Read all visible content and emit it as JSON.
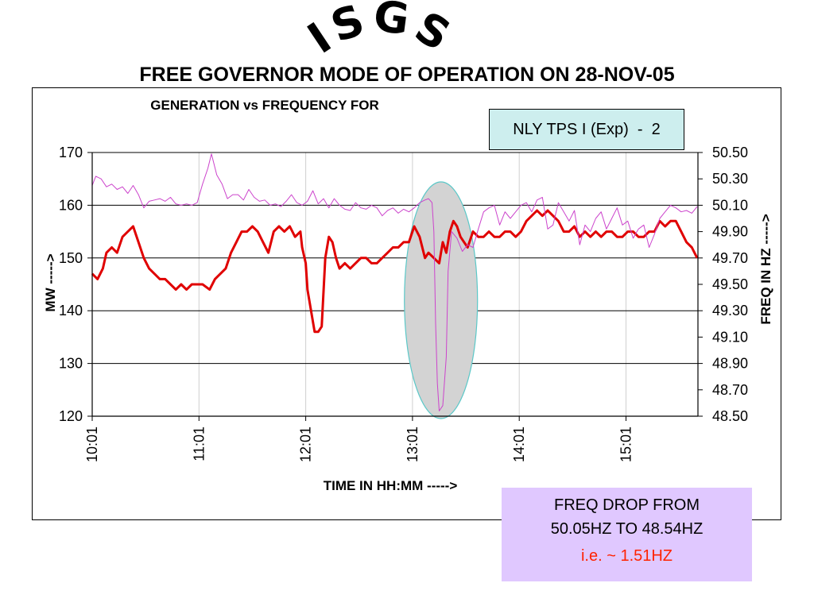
{
  "slide": {
    "logo_text": "ISGS",
    "title": "FREE GOVERNOR MODE OF OPERATION ON 28-NOV-05"
  },
  "unit_box": {
    "label": "NLY TPS I (Exp)  -  2"
  },
  "note": {
    "line1": "FREQ DROP FROM",
    "line2": "50.05HZ TO 48.54HZ",
    "line3": "i.e. ~ 1.51HZ",
    "line3_color": "#ff2200",
    "background": "#e0c8ff"
  },
  "chart_data": {
    "type": "line",
    "title": "GENERATION vs FREQUENCY FOR",
    "xlabel": "TIME IN HH:MM ----->",
    "ylabel_left": "MW ----->",
    "ylabel_right": "FREQ IN HZ ----->",
    "x_ticks": [
      "10:01",
      "11:01",
      "12:01",
      "13:01",
      "14:01",
      "15:01"
    ],
    "x_range": [
      "10:01",
      "15:41"
    ],
    "y_left": {
      "range": [
        120,
        170
      ],
      "ticks": [
        "120",
        "130",
        "140",
        "150",
        "160",
        "170"
      ]
    },
    "y_right": {
      "range": [
        48.5,
        50.5
      ],
      "ticks": [
        "48.50",
        "48.70",
        "48.90",
        "49.10",
        "49.30",
        "49.50",
        "49.70",
        "49.90",
        "50.10",
        "50.30",
        "50.50"
      ]
    },
    "grid": "horizontal",
    "highlight": {
      "type": "ellipse",
      "around": "frequency drop near 13:20",
      "fill": "#d3d3d3",
      "stroke": "#5bc8c8"
    },
    "series": [
      {
        "axis": "left",
        "color": "#e00000",
        "points": [
          [
            "10:01",
            147
          ],
          [
            "10:04",
            146
          ],
          [
            "10:07",
            148
          ],
          [
            "10:09",
            151
          ],
          [
            "10:12",
            152
          ],
          [
            "10:15",
            151
          ],
          [
            "10:18",
            154
          ],
          [
            "10:21",
            155
          ],
          [
            "10:24",
            156
          ],
          [
            "10:27",
            153
          ],
          [
            "10:30",
            150
          ],
          [
            "10:33",
            148
          ],
          [
            "10:36",
            147
          ],
          [
            "10:39",
            146
          ],
          [
            "10:42",
            146
          ],
          [
            "10:45",
            145
          ],
          [
            "10:48",
            144
          ],
          [
            "10:51",
            145
          ],
          [
            "10:54",
            144
          ],
          [
            "10:57",
            145
          ],
          [
            "11:00",
            145
          ],
          [
            "11:03",
            145
          ],
          [
            "11:07",
            144
          ],
          [
            "11:10",
            146
          ],
          [
            "11:13",
            147
          ],
          [
            "11:16",
            148
          ],
          [
            "11:19",
            151
          ],
          [
            "11:22",
            153
          ],
          [
            "11:25",
            155
          ],
          [
            "11:28",
            155
          ],
          [
            "11:31",
            156
          ],
          [
            "11:34",
            155
          ],
          [
            "11:37",
            153
          ],
          [
            "11:40",
            151
          ],
          [
            "11:43",
            155
          ],
          [
            "11:46",
            156
          ],
          [
            "11:49",
            155
          ],
          [
            "11:52",
            156
          ],
          [
            "11:55",
            154
          ],
          [
            "11:58",
            155
          ],
          [
            "11:59",
            152
          ],
          [
            "12:01",
            149
          ],
          [
            "12:02",
            144
          ],
          [
            "12:04",
            140
          ],
          [
            "12:06",
            136
          ],
          [
            "12:08",
            136
          ],
          [
            "12:10",
            137
          ],
          [
            "12:12",
            150
          ],
          [
            "12:14",
            154
          ],
          [
            "12:16",
            153
          ],
          [
            "12:18",
            150
          ],
          [
            "12:20",
            148
          ],
          [
            "12:23",
            149
          ],
          [
            "12:26",
            148
          ],
          [
            "12:29",
            149
          ],
          [
            "12:32",
            150
          ],
          [
            "12:35",
            150
          ],
          [
            "12:38",
            149
          ],
          [
            "12:41",
            149
          ],
          [
            "12:44",
            150
          ],
          [
            "12:47",
            151
          ],
          [
            "12:50",
            152
          ],
          [
            "12:53",
            152
          ],
          [
            "12:56",
            153
          ],
          [
            "12:59",
            153
          ],
          [
            "13:02",
            156
          ],
          [
            "13:05",
            154
          ],
          [
            "13:08",
            150
          ],
          [
            "13:10",
            151
          ],
          [
            "13:13",
            150
          ],
          [
            "13:16",
            149
          ],
          [
            "13:18",
            153
          ],
          [
            "13:20",
            151
          ],
          [
            "13:22",
            155
          ],
          [
            "13:24",
            157
          ],
          [
            "13:26",
            156
          ],
          [
            "13:28",
            154
          ],
          [
            "13:30",
            153
          ],
          [
            "13:32",
            152
          ],
          [
            "13:35",
            155
          ],
          [
            "13:38",
            154
          ],
          [
            "13:41",
            154
          ],
          [
            "13:44",
            155
          ],
          [
            "13:47",
            154
          ],
          [
            "13:50",
            154
          ],
          [
            "13:53",
            155
          ],
          [
            "13:56",
            155
          ],
          [
            "13:59",
            154
          ],
          [
            "14:02",
            155
          ],
          [
            "14:05",
            157
          ],
          [
            "14:08",
            158
          ],
          [
            "14:11",
            159
          ],
          [
            "14:14",
            158
          ],
          [
            "14:17",
            159
          ],
          [
            "14:20",
            158
          ],
          [
            "14:23",
            157
          ],
          [
            "14:26",
            155
          ],
          [
            "14:29",
            155
          ],
          [
            "14:32",
            156
          ],
          [
            "14:35",
            154
          ],
          [
            "14:38",
            155
          ],
          [
            "14:41",
            154
          ],
          [
            "14:44",
            155
          ],
          [
            "14:47",
            154
          ],
          [
            "14:50",
            155
          ],
          [
            "14:53",
            155
          ],
          [
            "14:56",
            154
          ],
          [
            "14:59",
            154
          ],
          [
            "15:02",
            155
          ],
          [
            "15:05",
            155
          ],
          [
            "15:08",
            154
          ],
          [
            "15:11",
            154
          ],
          [
            "15:14",
            155
          ],
          [
            "15:17",
            155
          ],
          [
            "15:20",
            157
          ],
          [
            "15:23",
            156
          ],
          [
            "15:26",
            157
          ],
          [
            "15:29",
            157
          ],
          [
            "15:32",
            155
          ],
          [
            "15:35",
            153
          ],
          [
            "15:38",
            152
          ],
          [
            "15:41",
            150
          ]
        ]
      },
      {
        "axis": "right",
        "color": "#cc44cc",
        "points": [
          [
            "10:01",
            50.25
          ],
          [
            "10:03",
            50.32
          ],
          [
            "10:06",
            50.3
          ],
          [
            "10:09",
            50.24
          ],
          [
            "10:12",
            50.26
          ],
          [
            "10:15",
            50.22
          ],
          [
            "10:18",
            50.24
          ],
          [
            "10:21",
            50.19
          ],
          [
            "10:24",
            50.25
          ],
          [
            "10:27",
            50.18
          ],
          [
            "10:30",
            50.08
          ],
          [
            "10:33",
            50.13
          ],
          [
            "10:36",
            50.14
          ],
          [
            "10:39",
            50.15
          ],
          [
            "10:42",
            50.13
          ],
          [
            "10:45",
            50.16
          ],
          [
            "10:48",
            50.11
          ],
          [
            "10:51",
            50.1
          ],
          [
            "10:54",
            50.11
          ],
          [
            "10:57",
            50.1
          ],
          [
            "11:00",
            50.12
          ],
          [
            "11:03",
            50.26
          ],
          [
            "11:06",
            50.38
          ],
          [
            "11:08",
            50.49
          ],
          [
            "11:11",
            50.33
          ],
          [
            "11:14",
            50.26
          ],
          [
            "11:17",
            50.15
          ],
          [
            "11:20",
            50.18
          ],
          [
            "11:23",
            50.18
          ],
          [
            "11:26",
            50.14
          ],
          [
            "11:29",
            50.22
          ],
          [
            "11:32",
            50.16
          ],
          [
            "11:35",
            50.13
          ],
          [
            "11:38",
            50.14
          ],
          [
            "11:41",
            50.1
          ],
          [
            "11:44",
            50.11
          ],
          [
            "11:47",
            50.09
          ],
          [
            "11:50",
            50.13
          ],
          [
            "11:53",
            50.18
          ],
          [
            "11:56",
            50.12
          ],
          [
            "11:59",
            50.1
          ],
          [
            "12:02",
            50.13
          ],
          [
            "12:05",
            50.21
          ],
          [
            "12:08",
            50.11
          ],
          [
            "12:11",
            50.15
          ],
          [
            "12:14",
            50.08
          ],
          [
            "12:17",
            50.15
          ],
          [
            "12:20",
            50.1
          ],
          [
            "12:23",
            50.07
          ],
          [
            "12:26",
            50.06
          ],
          [
            "12:29",
            50.12
          ],
          [
            "12:32",
            50.08
          ],
          [
            "12:35",
            50.07
          ],
          [
            "12:38",
            50.1
          ],
          [
            "12:41",
            50.08
          ],
          [
            "12:44",
            50.02
          ],
          [
            "12:47",
            50.06
          ],
          [
            "12:50",
            50.08
          ],
          [
            "12:53",
            50.04
          ],
          [
            "12:56",
            50.07
          ],
          [
            "12:59",
            50.05
          ],
          [
            "13:02",
            50.08
          ],
          [
            "13:05",
            50.12
          ],
          [
            "13:08",
            50.14
          ],
          [
            "13:10",
            50.15
          ],
          [
            "13:12",
            50.12
          ],
          [
            "13:13",
            49.9
          ],
          [
            "13:14",
            49.2
          ],
          [
            "13:15",
            48.75
          ],
          [
            "13:16",
            48.54
          ],
          [
            "13:18",
            48.58
          ],
          [
            "13:20",
            48.95
          ],
          [
            "13:21",
            49.6
          ],
          [
            "13:23",
            49.9
          ],
          [
            "13:26",
            49.85
          ],
          [
            "13:29",
            49.75
          ],
          [
            "13:32",
            49.8
          ],
          [
            "13:35",
            49.78
          ],
          [
            "13:38",
            49.92
          ],
          [
            "13:41",
            50.05
          ],
          [
            "13:44",
            50.08
          ],
          [
            "13:47",
            50.1
          ],
          [
            "13:50",
            49.95
          ],
          [
            "13:53",
            50.05
          ],
          [
            "13:56",
            50.0
          ],
          [
            "13:59",
            50.05
          ],
          [
            "14:02",
            50.1
          ],
          [
            "14:05",
            50.12
          ],
          [
            "14:08",
            50.05
          ],
          [
            "14:11",
            50.14
          ],
          [
            "14:14",
            50.16
          ],
          [
            "14:17",
            49.92
          ],
          [
            "14:20",
            49.95
          ],
          [
            "14:23",
            50.12
          ],
          [
            "14:26",
            50.05
          ],
          [
            "14:29",
            49.98
          ],
          [
            "14:32",
            50.06
          ],
          [
            "14:35",
            49.8
          ],
          [
            "14:38",
            49.95
          ],
          [
            "14:41",
            49.9
          ],
          [
            "14:44",
            50.0
          ],
          [
            "14:47",
            50.05
          ],
          [
            "14:50",
            49.92
          ],
          [
            "14:53",
            50.0
          ],
          [
            "14:56",
            50.08
          ],
          [
            "14:59",
            49.95
          ],
          [
            "15:02",
            49.98
          ],
          [
            "15:05",
            49.85
          ],
          [
            "15:08",
            49.92
          ],
          [
            "15:11",
            49.95
          ],
          [
            "15:14",
            49.78
          ],
          [
            "15:17",
            49.88
          ],
          [
            "15:20",
            50.0
          ],
          [
            "15:23",
            50.05
          ],
          [
            "15:26",
            50.1
          ],
          [
            "15:29",
            50.08
          ],
          [
            "15:32",
            50.05
          ],
          [
            "15:35",
            50.06
          ],
          [
            "15:38",
            50.04
          ],
          [
            "15:41",
            50.09
          ]
        ]
      }
    ]
  }
}
